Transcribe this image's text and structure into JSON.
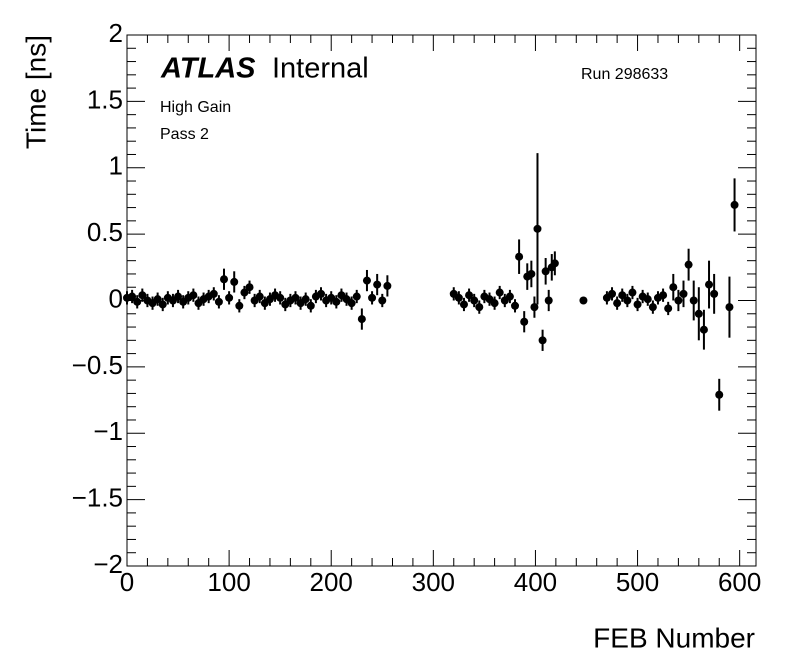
{
  "chart_data": {
    "type": "scatter",
    "title": "ATLAS",
    "subtitle": "Internal",
    "annotations": [
      "Run 298633",
      "High Gain",
      "Pass 2"
    ],
    "x_label": "FEB Number",
    "y_label": "Time [ns]",
    "xlim": [
      0,
      616
    ],
    "ylim": [
      -2,
      2
    ],
    "xticks": [
      0,
      100,
      200,
      300,
      400,
      500,
      600
    ],
    "yticks": [
      {
        "value": -2,
        "label": "−2"
      },
      {
        "value": -1.5,
        "label": "−1.5"
      },
      {
        "value": -1,
        "label": "−1"
      },
      {
        "value": -0.5,
        "label": "−0.5"
      },
      0,
      0.5,
      1,
      1.5,
      2
    ],
    "x": [
      0,
      5,
      10,
      15,
      20,
      25,
      30,
      35,
      40,
      45,
      50,
      55,
      60,
      65,
      70,
      75,
      80,
      85,
      90,
      95,
      100,
      105,
      110,
      115,
      120,
      125,
      130,
      135,
      140,
      145,
      150,
      155,
      160,
      165,
      170,
      175,
      180,
      185,
      190,
      195,
      200,
      205,
      210,
      215,
      220,
      225,
      230,
      235,
      240,
      245,
      250,
      255,
      320,
      325,
      330,
      335,
      340,
      345,
      350,
      355,
      360,
      365,
      370,
      375,
      380,
      384,
      389,
      392,
      396,
      399,
      402,
      407,
      410,
      413,
      416,
      419,
      447,
      470,
      475,
      480,
      485,
      490,
      495,
      500,
      505,
      510,
      515,
      520,
      525,
      530,
      535,
      540,
      545,
      550,
      555,
      560,
      565,
      570,
      575,
      580,
      590,
      595
    ],
    "series": [
      {
        "color": "#000000",
        "values": [
          0.02,
          0.03,
          -0.01,
          0.04,
          0.0,
          -0.02,
          0.01,
          -0.03,
          0.02,
          0.0,
          0.03,
          -0.01,
          0.02,
          0.04,
          -0.02,
          0.01,
          0.03,
          0.05,
          -0.01,
          0.16,
          0.02,
          0.14,
          -0.04,
          0.06,
          0.1,
          0.0,
          0.03,
          -0.02,
          0.01,
          0.04,
          0.02,
          -0.03,
          0.0,
          0.02,
          -0.02,
          0.01,
          -0.04,
          0.03,
          0.05,
          0.0,
          0.02,
          -0.01,
          0.04,
          0.01,
          -0.02,
          0.03,
          -0.14,
          0.15,
          0.02,
          0.12,
          0.0,
          0.11,
          0.05,
          0.02,
          -0.03,
          0.04,
          0.0,
          -0.05,
          0.03,
          0.01,
          -0.02,
          0.06,
          0.0,
          0.03,
          -0.04,
          0.33,
          -0.16,
          0.18,
          0.2,
          -0.05,
          0.54,
          -0.3,
          0.22,
          0.0,
          0.25,
          0.28,
          0.0,
          0.02,
          0.05,
          -0.02,
          0.04,
          0.0,
          0.06,
          -0.03,
          0.03,
          0.01,
          -0.05,
          0.02,
          0.04,
          -0.06,
          0.1,
          0.0,
          0.05,
          0.27,
          0.0,
          -0.1,
          -0.22,
          0.12,
          0.05,
          -0.71,
          -0.05,
          0.72
        ],
        "errors": [
          0.05,
          0.05,
          0.05,
          0.05,
          0.05,
          0.05,
          0.05,
          0.05,
          0.05,
          0.05,
          0.05,
          0.05,
          0.05,
          0.05,
          0.05,
          0.05,
          0.05,
          0.05,
          0.05,
          0.08,
          0.05,
          0.08,
          0.05,
          0.05,
          0.05,
          0.05,
          0.05,
          0.05,
          0.05,
          0.05,
          0.05,
          0.05,
          0.05,
          0.05,
          0.05,
          0.05,
          0.05,
          0.05,
          0.05,
          0.05,
          0.05,
          0.05,
          0.05,
          0.05,
          0.05,
          0.05,
          0.08,
          0.08,
          0.05,
          0.08,
          0.05,
          0.08,
          0.05,
          0.05,
          0.05,
          0.05,
          0.05,
          0.05,
          0.05,
          0.05,
          0.05,
          0.05,
          0.05,
          0.05,
          0.05,
          0.13,
          0.08,
          0.1,
          0.1,
          0.08,
          0.57,
          0.08,
          0.1,
          0.08,
          0.1,
          0.09,
          0.02,
          0.05,
          0.05,
          0.05,
          0.05,
          0.05,
          0.05,
          0.05,
          0.05,
          0.05,
          0.05,
          0.05,
          0.05,
          0.05,
          0.1,
          0.08,
          0.1,
          0.12,
          0.15,
          0.2,
          0.15,
          0.18,
          0.15,
          0.12,
          0.23,
          0.2
        ]
      }
    ]
  }
}
